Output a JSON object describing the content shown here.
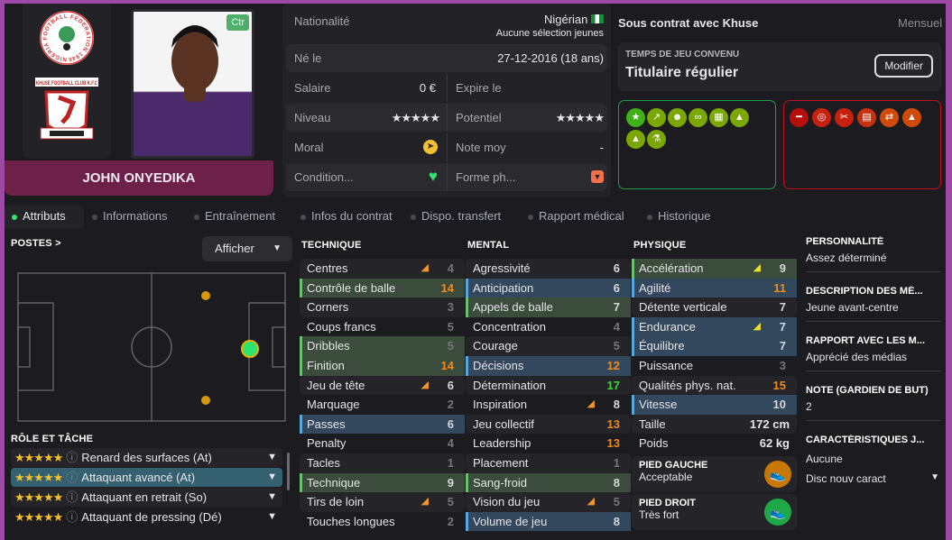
{
  "player": {
    "name": "JOHN ONYEDIKA",
    "position_badge": "Ctr",
    "nation_logo_text": "NIGERIA FOOTBALL FEDERATION 1945",
    "club_logo_text": "KHUSE FOOTBALL CLUB K.F.C"
  },
  "info": {
    "nationality_label": "Nationalité",
    "nationality": "Nigérian",
    "youth_caps": "Aucune sélection jeunes",
    "born_label": "Né le",
    "born": "27-12-2016 (18 ans)",
    "salary_label": "Salaire",
    "salary": "0 €",
    "expires_label": "Expire le",
    "level_label": "Niveau",
    "level_stars": 5,
    "potential_label": "Potentiel",
    "potential_stars": 5,
    "morale_label": "Moral",
    "avg_rating_label": "Note moy",
    "avg_rating": "-",
    "condition_label": "Condition...",
    "form_label": "Forme ph..."
  },
  "contract": {
    "title": "Sous contrat avec Khuse",
    "period": "Mensuel",
    "playing_time_label": "TEMPS DE JEU CONVENU",
    "playing_time": "Titulaire régulier",
    "modify_label": "Modifier"
  },
  "traits": {
    "positive": [
      "star-icon",
      "trend-up-icon",
      "brain-icon",
      "chain-icon",
      "tactics-board-icon",
      "cone-smile-icon",
      "cone-up-icon",
      "flask-icon"
    ],
    "negative": [
      "dumbbell-icon",
      "target-icon",
      "broken-bone-icon",
      "report-icon",
      "handshake-icon",
      "cone-gear-icon"
    ]
  },
  "tabs": [
    {
      "label": "Attributs",
      "active": true
    },
    {
      "label": "Informations"
    },
    {
      "label": "Entraînement"
    },
    {
      "label": "Infos du contrat"
    },
    {
      "label": "Dispo. transfert"
    },
    {
      "label": "Rapport médical"
    },
    {
      "label": "Historique"
    }
  ],
  "positions": {
    "title": "POSTES >",
    "display_button": "Afficher"
  },
  "roles": {
    "title": "RÔLE ET TÂCHE",
    "items": [
      {
        "stars": "★★★★★",
        "label": "Renard des surfaces (At)"
      },
      {
        "stars": "★★★★★",
        "label": "Attaquant avancé (At)",
        "selected": true
      },
      {
        "stars": "★★★★★",
        "label": "Attaquant en retrait (So)"
      },
      {
        "stars": "★★★★★",
        "label": "Attaquant de pressing (Dé)"
      }
    ]
  },
  "attributes": {
    "technique": {
      "title": "TECHNIQUE",
      "rows": [
        {
          "name": "Centres",
          "value": 4,
          "arrow": "up"
        },
        {
          "name": "Contrôle de balle",
          "value": 14,
          "hl": "green"
        },
        {
          "name": "Corners",
          "value": 3
        },
        {
          "name": "Coups francs",
          "value": 5
        },
        {
          "name": "Dribbles",
          "value": 5,
          "hl": "green"
        },
        {
          "name": "Finition",
          "value": 14,
          "hl": "green"
        },
        {
          "name": "Jeu de tête",
          "value": 6,
          "arrow": "up"
        },
        {
          "name": "Marquage",
          "value": 2
        },
        {
          "name": "Passes",
          "value": 6,
          "hl": "blue"
        },
        {
          "name": "Penalty",
          "value": 4
        },
        {
          "name": "Tacles",
          "value": 1
        },
        {
          "name": "Technique",
          "value": 9,
          "hl": "green"
        },
        {
          "name": "Tirs de loin",
          "value": 5,
          "arrow": "up"
        },
        {
          "name": "Touches longues",
          "value": 2
        }
      ]
    },
    "mental": {
      "title": "MENTAL",
      "rows": [
        {
          "name": "Agressivité",
          "value": 6
        },
        {
          "name": "Anticipation",
          "value": 6,
          "hl": "blue"
        },
        {
          "name": "Appels de balle",
          "value": 7,
          "hl": "green"
        },
        {
          "name": "Concentration",
          "value": 4
        },
        {
          "name": "Courage",
          "value": 5
        },
        {
          "name": "Décisions",
          "value": 12,
          "hl": "blue"
        },
        {
          "name": "Détermination",
          "value": 17
        },
        {
          "name": "Inspiration",
          "value": 8,
          "arrow": "up"
        },
        {
          "name": "Jeu collectif",
          "value": 13
        },
        {
          "name": "Leadership",
          "value": 13
        },
        {
          "name": "Placement",
          "value": 1
        },
        {
          "name": "Sang-froid",
          "value": 8,
          "hl": "green"
        },
        {
          "name": "Vision du jeu",
          "value": 5,
          "arrow": "up"
        },
        {
          "name": "Volume de jeu",
          "value": 8,
          "hl": "blue"
        }
      ]
    },
    "physique": {
      "title": "PHYSIQUE",
      "rows": [
        {
          "name": "Accélération",
          "value": 9,
          "hl": "green",
          "arrow": "up-strong"
        },
        {
          "name": "Agilité",
          "value": 11,
          "hl": "blue"
        },
        {
          "name": "Détente verticale",
          "value": 7
        },
        {
          "name": "Endurance",
          "value": 7,
          "hl": "blue",
          "arrow": "up-strong"
        },
        {
          "name": "Équilibre",
          "value": 7,
          "hl": "blue"
        },
        {
          "name": "Puissance",
          "value": 3
        },
        {
          "name": "Qualités phys. nat.",
          "value": 15
        },
        {
          "name": "Vitesse",
          "value": 10,
          "hl": "blue"
        }
      ],
      "height_label": "Taille",
      "height": "172 cm",
      "weight_label": "Poids",
      "weight": "62 kg",
      "left_foot_label": "PIED GAUCHE",
      "left_foot": "Acceptable",
      "right_foot_label": "PIED DROIT",
      "right_foot": "Très fort"
    }
  },
  "side": [
    {
      "h": "PERSONNALITÉ",
      "v": "Assez déterminé"
    },
    {
      "h": "DESCRIPTION DES MÉ...",
      "v": "Jeune avant-centre"
    },
    {
      "h": "RAPPORT AVEC LES M...",
      "v": "Apprécié des médias"
    },
    {
      "h": "NOTE (GARDIEN DE BUT)",
      "v": "2"
    },
    {
      "h": "CARACTÉRISTIQUES J...",
      "v": "Aucune",
      "extra": "Disc nouv caract"
    }
  ],
  "colors": {
    "accent": "#9d4aa6",
    "name_bar": "#6e2148",
    "positive": "#7aa800",
    "negative": "#c01010"
  }
}
